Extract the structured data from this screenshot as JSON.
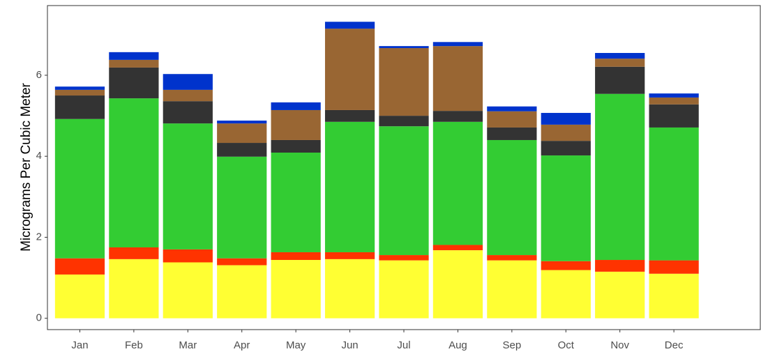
{
  "chart_data": {
    "type": "stacked_bar",
    "y_label": "Micrograms Per Cubic Meter",
    "categories": [
      "Jan",
      "Feb",
      "Mar",
      "Apr",
      "May",
      "Jun",
      "Jul",
      "Aug",
      "Sep",
      "Oct",
      "Nov",
      "Dec"
    ],
    "series": [
      {
        "color": "#ffff33",
        "values": [
          1.08,
          1.46,
          1.38,
          1.31,
          1.44,
          1.46,
          1.43,
          1.68,
          1.43,
          1.19,
          1.15,
          1.1
        ]
      },
      {
        "color": "#ff3300",
        "values": [
          0.4,
          0.29,
          0.32,
          0.17,
          0.19,
          0.17,
          0.13,
          0.13,
          0.13,
          0.22,
          0.29,
          0.33
        ]
      },
      {
        "color": "#33cc33",
        "values": [
          3.44,
          3.68,
          3.11,
          2.51,
          2.46,
          3.22,
          3.18,
          3.04,
          2.84,
          2.61,
          4.1,
          3.28
        ]
      },
      {
        "color": "#333333",
        "values": [
          0.58,
          0.76,
          0.55,
          0.34,
          0.31,
          0.29,
          0.26,
          0.27,
          0.31,
          0.36,
          0.67,
          0.57
        ]
      },
      {
        "color": "#996633",
        "values": [
          0.14,
          0.19,
          0.28,
          0.48,
          0.74,
          2.01,
          1.67,
          1.6,
          0.4,
          0.4,
          0.2,
          0.17
        ]
      },
      {
        "color": "#0033cc",
        "values": [
          0.08,
          0.19,
          0.39,
          0.07,
          0.19,
          0.17,
          0.05,
          0.1,
          0.12,
          0.29,
          0.14,
          0.1
        ]
      }
    ],
    "ylim": [
      -0.28,
      7.72
    ],
    "yticks": [
      0,
      2,
      4,
      6
    ],
    "grid": false
  }
}
